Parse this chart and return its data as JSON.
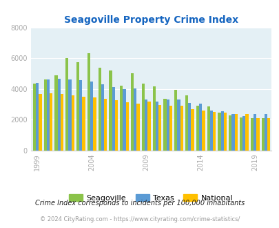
{
  "title": "Seagoville Property Crime Index",
  "years": [
    1999,
    2000,
    2001,
    2002,
    2003,
    2004,
    2005,
    2006,
    2007,
    2008,
    2009,
    2010,
    2011,
    2012,
    2013,
    2014,
    2015,
    2016,
    2017,
    2018,
    2019,
    2020
  ],
  "seagoville": [
    4350,
    4600,
    4900,
    6000,
    5750,
    6300,
    5400,
    5200,
    4200,
    5000,
    4350,
    4150,
    3350,
    3950,
    3600,
    2900,
    2850,
    2450,
    2300,
    2150,
    2100,
    2100
  ],
  "texas": [
    4400,
    4600,
    4650,
    4600,
    4550,
    4500,
    4300,
    4100,
    4000,
    4050,
    3300,
    3200,
    3300,
    3300,
    3100,
    3050,
    2600,
    2550,
    2350,
    2250,
    2350,
    2350
  ],
  "national": [
    3650,
    3700,
    3650,
    3600,
    3500,
    3450,
    3350,
    3250,
    3150,
    3050,
    3200,
    2950,
    2900,
    2900,
    2700,
    2600,
    2500,
    2450,
    2350,
    2350,
    2100,
    2100
  ],
  "color_seagoville": "#8bc34a",
  "color_texas": "#5b9bd5",
  "color_national": "#ffc000",
  "bg_color": "#e4f0f5",
  "ylim": [
    0,
    8000
  ],
  "yticks": [
    0,
    2000,
    4000,
    6000,
    8000
  ],
  "xlabel_years": [
    1999,
    2004,
    2009,
    2014,
    2019
  ],
  "footnote1": "Crime Index corresponds to incidents per 100,000 inhabitants",
  "footnote2": "© 2024 CityRating.com - https://www.cityrating.com/crime-statistics/",
  "title_color": "#1565c0",
  "tick_color": "#aaaaaa",
  "footnote1_color": "#222222",
  "footnote2_color": "#999999"
}
